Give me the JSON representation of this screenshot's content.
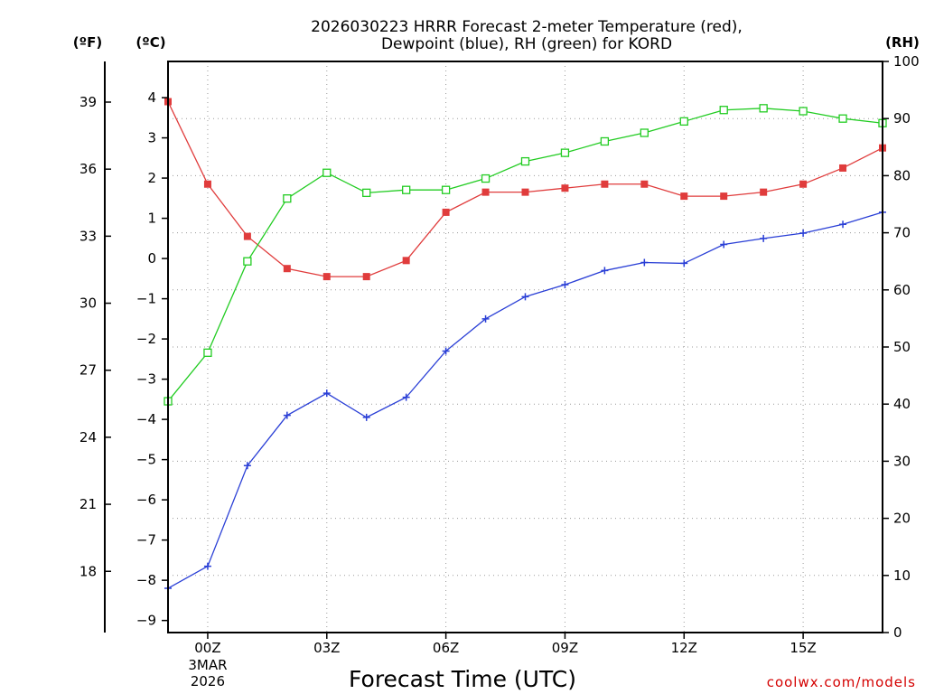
{
  "chart_data": {
    "type": "line",
    "title_line1": "2026030223 HRRR Forecast 2-meter Temperature (red),",
    "title_line2": "Dewpoint (blue), RH (green) for KORD",
    "unit_f": "(ºF)",
    "unit_c": "(ºC)",
    "unit_rh": "(RH)",
    "xlabel": "Forecast Time (UTC)",
    "credit": "coolwx.com/models",
    "x_hours": [
      -1,
      0,
      1,
      2,
      3,
      4,
      5,
      6,
      7,
      8,
      9,
      10,
      11,
      12,
      13,
      14,
      15,
      16,
      17
    ],
    "xlim": [
      -1,
      17
    ],
    "x_ticks": [
      {
        "hour": 0,
        "label": "00Z",
        "sub1": "3MAR",
        "sub2": "2026"
      },
      {
        "hour": 3,
        "label": "03Z"
      },
      {
        "hour": 6,
        "label": "06Z"
      },
      {
        "hour": 9,
        "label": "09Z"
      },
      {
        "hour": 12,
        "label": "12Z"
      },
      {
        "hour": 15,
        "label": "15Z"
      }
    ],
    "ylim_c": [
      -9.3,
      4.9
    ],
    "yticks_c": [
      4,
      3,
      2,
      1,
      0,
      -1,
      -2,
      -3,
      -4,
      -5,
      -6,
      -7,
      -8,
      -9
    ],
    "yticks_c_labels": [
      "4",
      "3",
      "2",
      "1",
      "0",
      "−1",
      "−2",
      "−3",
      "−4",
      "−5",
      "−6",
      "−7",
      "−8",
      "−9"
    ],
    "yticks_f": [
      39,
      36,
      33,
      30,
      27,
      24,
      21,
      18
    ],
    "yticks_f_labels": [
      "39",
      "36",
      "33",
      "30",
      "27",
      "24",
      "21",
      "18"
    ],
    "ylim_rh": [
      0,
      100
    ],
    "yticks_rh": [
      0,
      10,
      20,
      30,
      40,
      50,
      60,
      70,
      80,
      90,
      100
    ],
    "yticks_rh_labels": [
      "0",
      "10",
      "20",
      "30",
      "40",
      "50",
      "60",
      "70",
      "80",
      "90",
      "100"
    ],
    "series": [
      {
        "name": "2-meter Temperature",
        "axis": "C",
        "color": "#e03c3c",
        "marker": "filled-square",
        "values": [
          3.9,
          1.85,
          0.55,
          -0.25,
          -0.45,
          -0.45,
          -0.05,
          1.15,
          1.65,
          1.65,
          1.75,
          1.85,
          1.85,
          1.55,
          1.55,
          1.65,
          1.85,
          2.25,
          2.75
        ]
      },
      {
        "name": "Dewpoint",
        "axis": "C",
        "color": "#2a3fd6",
        "marker": "plus",
        "values": [
          -8.2,
          -7.65,
          -5.15,
          -3.9,
          -3.35,
          -3.95,
          -3.45,
          -2.3,
          -1.5,
          -0.95,
          -0.65,
          -0.3,
          -0.1,
          -0.12,
          0.35,
          0.5,
          0.63,
          0.85,
          1.15
        ]
      },
      {
        "name": "RH",
        "axis": "RH",
        "color": "#22cc22",
        "marker": "open-square",
        "values": [
          40.5,
          49,
          65,
          76,
          80.5,
          77,
          77.5,
          77.5,
          79.5,
          82.5,
          84,
          86,
          87.5,
          89.5,
          91.5,
          91.8,
          91.3,
          90,
          89.2
        ]
      }
    ]
  }
}
